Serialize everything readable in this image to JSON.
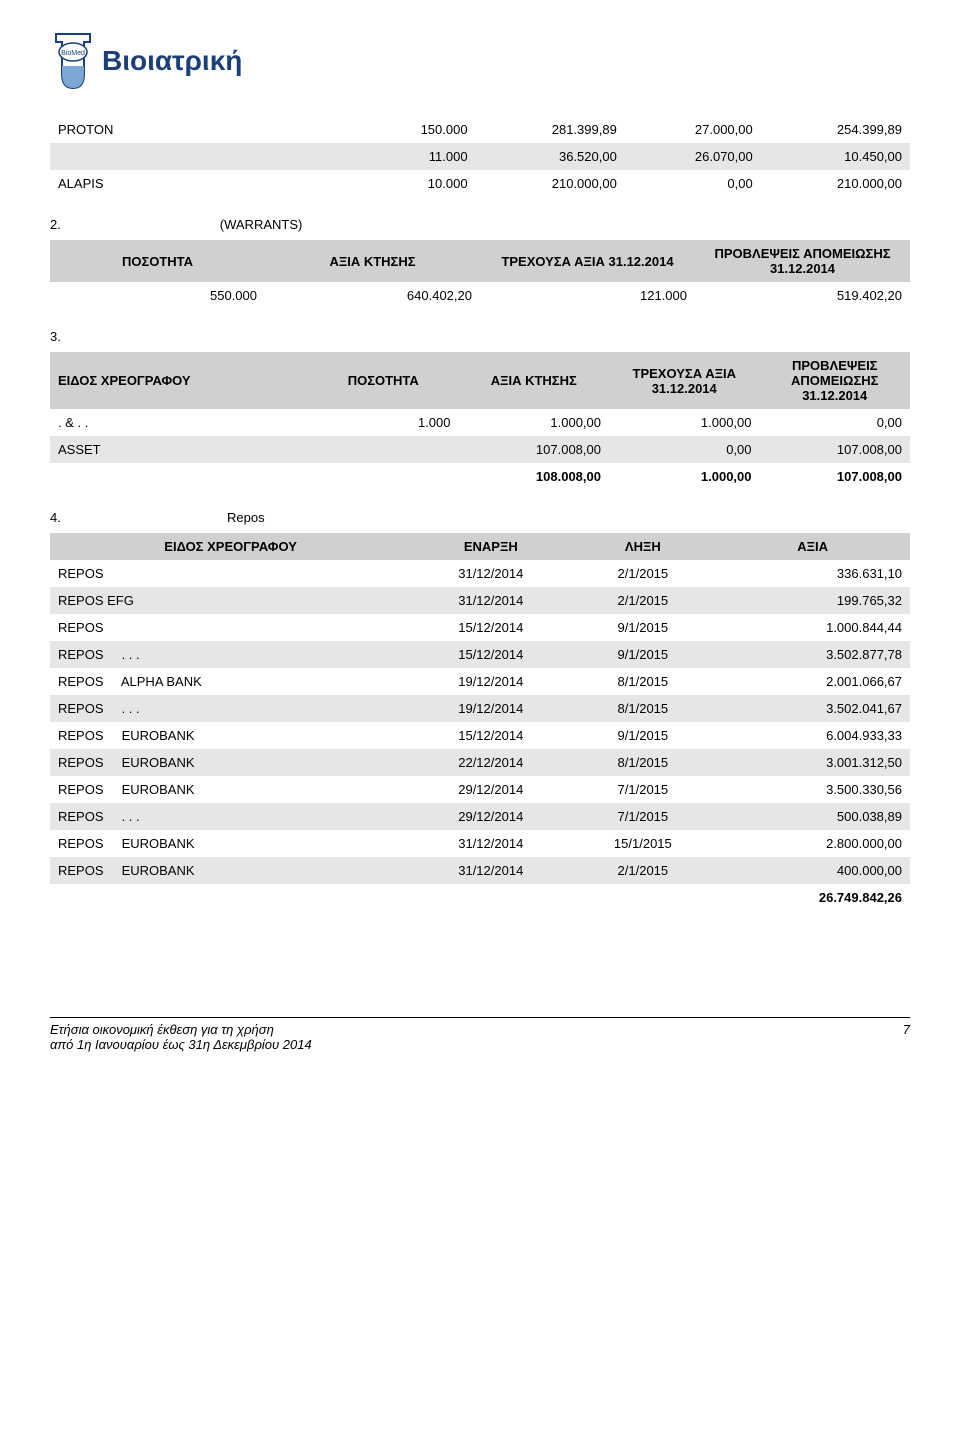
{
  "logo": {
    "text": "Βιοιατρική",
    "badge": "BioMed"
  },
  "table1": {
    "rows": [
      {
        "c0": "PROTON",
        "c1": "150.000",
        "c2": "281.399,89",
        "c3": "27.000,00",
        "c4": "254.399,89"
      },
      {
        "c0": "",
        "c1": "11.000",
        "c2": "36.520,00",
        "c3": "26.070,00",
        "c4": "10.450,00"
      },
      {
        "c0": "ALAPIS",
        "c1": "10.000",
        "c2": "210.000,00",
        "c3": "0,00",
        "c4": "210.000,00"
      }
    ]
  },
  "section2": {
    "label": "2.",
    "suffix": "(WARRANTS)"
  },
  "table2": {
    "headers": [
      "ΠΟΣΟΤΗΤΑ",
      "ΑΞΙΑ ΚΤΗΣΗΣ",
      "ΤΡΕΧΟΥΣΑ ΑΞΙΑ 31.12.2014",
      "ΠΡΟΒΛΕΨΕΙΣ ΑΠΟΜΕΙΩΣΗΣ 31.12.2014"
    ],
    "rows": [
      {
        "c0": "550.000",
        "c1": "640.402,20",
        "c2": "121.000",
        "c3": "519.402,20"
      }
    ]
  },
  "section3": {
    "label": "3."
  },
  "table3": {
    "headers": [
      "ΕΙΔΟΣ ΧΡΕΟΓΡΑΦΟΥ",
      "ΠΟΣΟΤΗΤΑ",
      "ΑΞΙΑ ΚΤΗΣΗΣ",
      "ΤΡΕΧΟΥΣΑ ΑΞΙΑ 31.12.2014",
      "ΠΡΟΒΛΕΨΕΙΣ ΑΠΟΜΕΙΩΣΗΣ 31.12.2014"
    ],
    "rows": [
      {
        "c0": ".      &    . .",
        "c1": "1.000",
        "c2": "1.000,00",
        "c3": "1.000,00",
        "c4": "0,00"
      },
      {
        "c0": "ASSET",
        "c1": "",
        "c2": "107.008,00",
        "c3": "0,00",
        "c4": "107.008,00"
      },
      {
        "c0": "",
        "c1": "",
        "c2": "108.008,00",
        "c3": "1.000,00",
        "c4": "107.008,00",
        "bold": true
      }
    ]
  },
  "section4": {
    "label": "4.",
    "suffix": "Repos"
  },
  "table4": {
    "headers": [
      "ΕΙΔΟΣ ΧΡΕΟΓΡΑΦΟΥ",
      "ΕΝΑΡΞΗ",
      "ΛΗΞΗ",
      "ΑΞΙΑ"
    ],
    "rows": [
      {
        "c0": "REPOS",
        "c1": "31/12/2014",
        "c2": "2/1/2015",
        "c3": "336.631,10"
      },
      {
        "c0": "REPOS EFG",
        "c1": "31/12/2014",
        "c2": "2/1/2015",
        "c3": "199.765,32"
      },
      {
        "c0": "REPOS",
        "c1": "15/12/2014",
        "c2": "9/1/2015",
        "c3": "1.000.844,44"
      },
      {
        "c0": "REPOS     . . .",
        "c1": "15/12/2014",
        "c2": "9/1/2015",
        "c3": "3.502.877,78"
      },
      {
        "c0": "REPOS     ALPHA BANK",
        "c1": "19/12/2014",
        "c2": "8/1/2015",
        "c3": "2.001.066,67"
      },
      {
        "c0": "REPOS     . . .",
        "c1": "19/12/2014",
        "c2": "8/1/2015",
        "c3": "3.502.041,67"
      },
      {
        "c0": "REPOS     EUROBANK",
        "c1": "15/12/2014",
        "c2": "9/1/2015",
        "c3": "6.004.933,33"
      },
      {
        "c0": "REPOS     EUROBANK",
        "c1": "22/12/2014",
        "c2": "8/1/2015",
        "c3": "3.001.312,50"
      },
      {
        "c0": "REPOS     EUROBANK",
        "c1": "29/12/2014",
        "c2": "7/1/2015",
        "c3": "3.500.330,56"
      },
      {
        "c0": "REPOS     . . .",
        "c1": "29/12/2014",
        "c2": "7/1/2015",
        "c3": "500.038,89"
      },
      {
        "c0": "REPOS     EUROBANK",
        "c1": "31/12/2014",
        "c2": "15/1/2015",
        "c3": "2.800.000,00"
      },
      {
        "c0": "REPOS     EUROBANK",
        "c1": "31/12/2014",
        "c2": "2/1/2015",
        "c3": "400.000,00"
      },
      {
        "c0": "",
        "c1": "",
        "c2": "",
        "c3": "26.749.842,26",
        "bold": true
      }
    ]
  },
  "footer": {
    "line1": "Ετήσια οικονομική έκθεση για τη χρήση",
    "line2": "από 1η Ιανουαρίου έως 31η Δεκεμβρίου 2014",
    "page": "7"
  },
  "colors": {
    "header_bg": "#d0d0d0",
    "stripe_bg": "#e6e6e6",
    "logo_text": "#1b3f7a"
  }
}
